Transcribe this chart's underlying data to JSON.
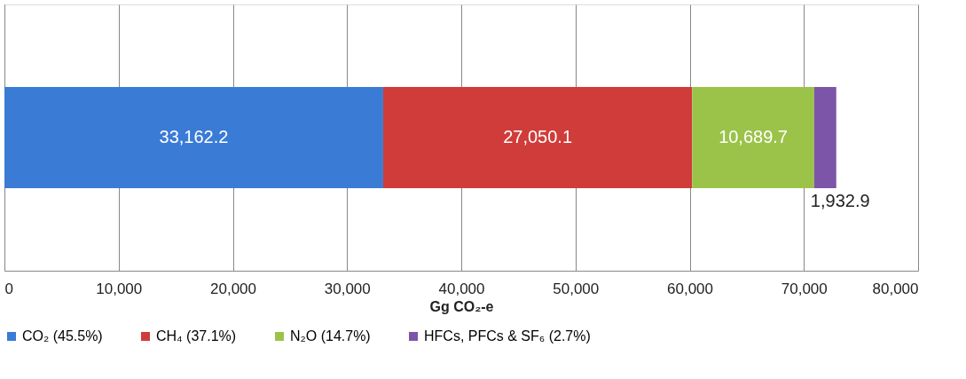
{
  "chart_data": {
    "type": "bar",
    "orientation": "horizontal",
    "stacked": true,
    "categories": [
      null
    ],
    "xlabel": "Gg CO₂-e",
    "series": [
      {
        "name": "CO₂ (45.5%)",
        "color": "#3a7bd5",
        "values": [
          33162.2
        ],
        "value_labels": [
          "33,162.2"
        ]
      },
      {
        "name": "CH₄ (37.1%)",
        "color": "#d03c3a",
        "values": [
          27050.1
        ],
        "value_labels": [
          "27,050.1"
        ]
      },
      {
        "name": "N₂O (14.7%)",
        "color": "#9bc34a",
        "values": [
          10689.7
        ],
        "value_labels": [
          "10,689.7"
        ]
      },
      {
        "name": "HFCs, PFCs & SF₆ (2.7%)",
        "color": "#7c55a8",
        "values": [
          1932.9
        ],
        "value_labels": [
          "1,932.9"
        ]
      }
    ],
    "xlim": [
      0,
      80000
    ],
    "xticks": [
      0,
      {
        "value": 10000,
        "label": "10,000"
      },
      {
        "value": 20000,
        "label": "20,000"
      },
      {
        "value": 30000,
        "label": "30,000"
      },
      {
        "value": 40000,
        "label": "40,000"
      },
      {
        "value": 50000,
        "label": "50,000"
      },
      {
        "value": 60000,
        "label": "60,000"
      },
      {
        "value": 70000,
        "label": "70,000"
      },
      {
        "value": 80000,
        "label": "80,000"
      }
    ],
    "grid": "x",
    "legend": "bottom"
  }
}
